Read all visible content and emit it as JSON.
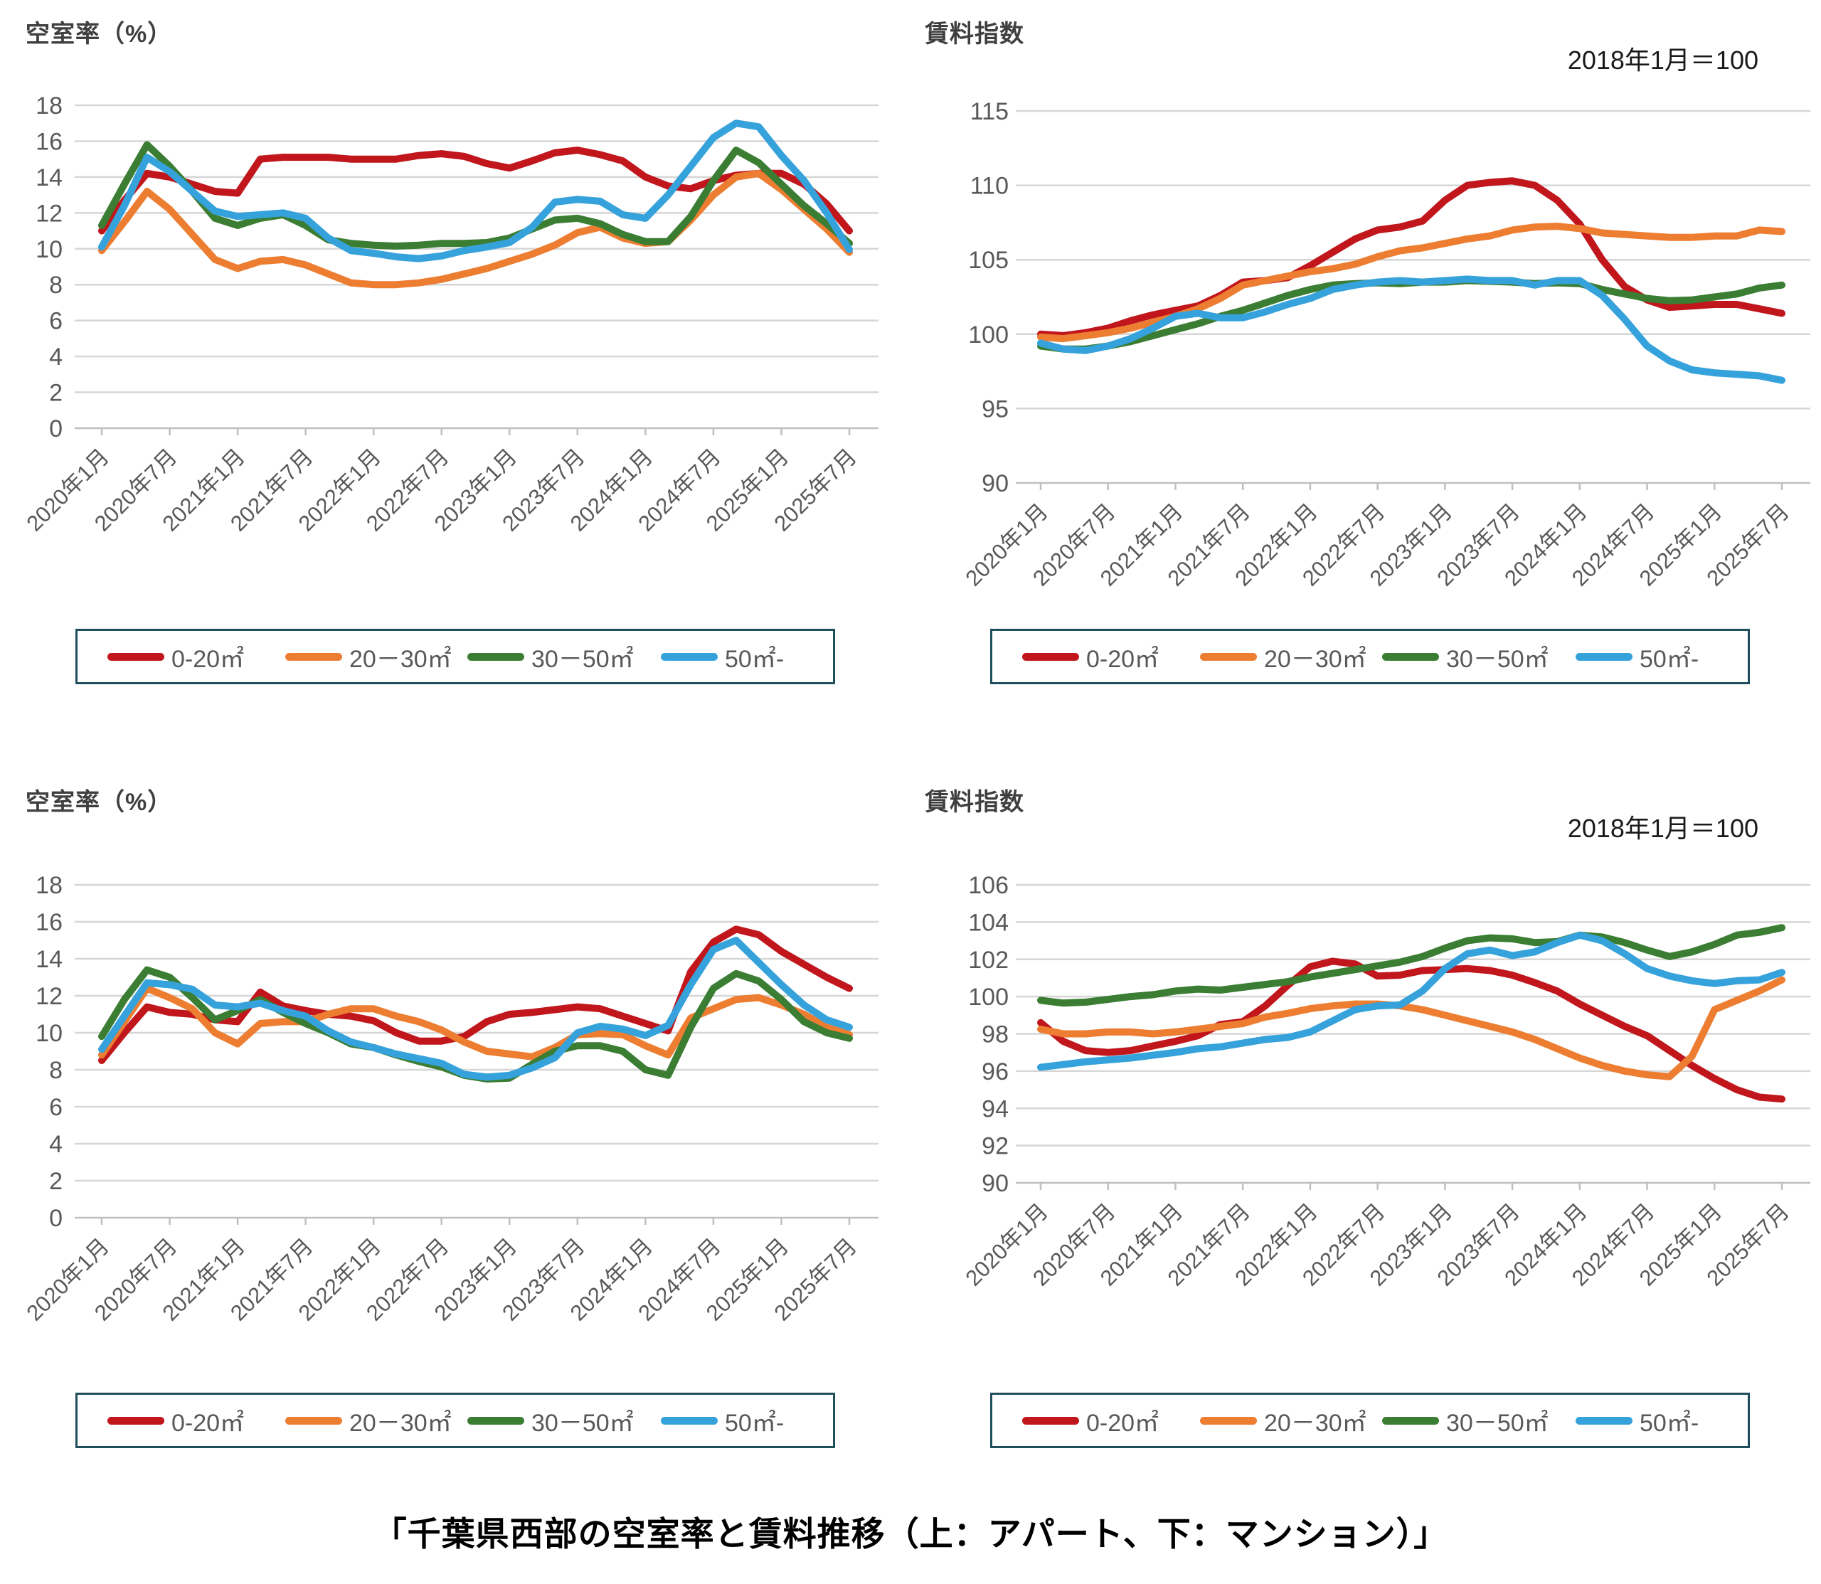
{
  "page": {
    "caption": "「千葉県西部の空室率と賃料推移（上：アパート、下：マンション）」",
    "background": "#ffffff"
  },
  "colors": {
    "series_0_20": "#c0161c",
    "series_20_30": "#ed7d31",
    "series_30_50": "#3a7d33",
    "series_50plus": "#36a2db",
    "grid": "#d6d6d6",
    "axis": "#bfbfbf",
    "tick_text": "#595959",
    "title_text": "#3f3f3f",
    "legend_border": "#1f4e5c"
  },
  "x_tick_labels": [
    "2020年1月",
    "2020年7月",
    "2021年1月",
    "2021年7月",
    "2022年1月",
    "2022年7月",
    "2023年1月",
    "2023年7月",
    "2024年1月",
    "2024年7月",
    "2025年1月",
    "2025年7月"
  ],
  "legend_labels": [
    "0-20㎡",
    "20－30㎡",
    "30－50㎡",
    "50㎡-"
  ],
  "chart_data": [
    {
      "id": "apartment-vacancy",
      "type": "line",
      "title": "空室率（%）",
      "xlabel": "",
      "ylabel": "空室率（%）",
      "ylim": [
        0,
        18
      ],
      "ytick_step": 2,
      "grid": true,
      "legend_position": "bottom",
      "x": [
        "2020-01",
        "2020-03",
        "2020-05",
        "2020-07",
        "2020-09",
        "2020-11",
        "2021-01",
        "2021-03",
        "2021-05",
        "2021-07",
        "2021-09",
        "2021-11",
        "2022-01",
        "2022-03",
        "2022-05",
        "2022-07",
        "2022-09",
        "2022-11",
        "2023-01",
        "2023-03",
        "2023-05",
        "2023-07",
        "2023-09",
        "2023-11",
        "2024-01",
        "2024-03",
        "2024-05",
        "2024-07",
        "2024-09",
        "2024-11",
        "2025-01",
        "2025-03",
        "2025-05",
        "2025-07"
      ],
      "series": [
        {
          "name": "0-20㎡",
          "color": "#c0161c",
          "values": [
            11.0,
            12.7,
            14.2,
            14.0,
            13.6,
            13.2,
            13.1,
            15.0,
            15.1,
            15.1,
            15.1,
            15.0,
            15.0,
            15.0,
            15.2,
            15.3,
            15.15,
            14.75,
            14.5,
            14.9,
            15.35,
            15.5,
            15.25,
            14.9,
            14.0,
            13.5,
            13.35,
            13.8,
            14.1,
            14.2,
            14.2,
            13.6,
            12.5,
            11.0
          ]
        },
        {
          "name": "20－30㎡",
          "color": "#ed7d31",
          "values": [
            9.9,
            11.5,
            13.2,
            12.2,
            10.8,
            9.4,
            8.9,
            9.3,
            9.4,
            9.1,
            8.6,
            8.1,
            8.0,
            8.0,
            8.1,
            8.3,
            8.6,
            8.9,
            9.3,
            9.7,
            10.2,
            10.9,
            11.2,
            10.6,
            10.3,
            10.4,
            11.6,
            13.0,
            14.0,
            14.2,
            13.3,
            12.2,
            11.1,
            9.8
          ]
        },
        {
          "name": "30－50㎡",
          "color": "#3a7d33",
          "values": [
            11.3,
            13.6,
            15.8,
            14.6,
            13.2,
            11.7,
            11.3,
            11.7,
            11.9,
            11.3,
            10.5,
            10.3,
            10.2,
            10.15,
            10.2,
            10.3,
            10.3,
            10.35,
            10.6,
            11.1,
            11.6,
            11.7,
            11.4,
            10.8,
            10.4,
            10.4,
            11.8,
            13.8,
            15.5,
            14.8,
            13.6,
            12.4,
            11.4,
            10.3
          ]
        },
        {
          "name": "50㎡-",
          "color": "#36a2db",
          "values": [
            10.1,
            12.4,
            15.1,
            14.3,
            13.2,
            12.1,
            11.8,
            11.9,
            12.0,
            11.7,
            10.6,
            9.9,
            9.75,
            9.55,
            9.45,
            9.6,
            9.9,
            10.1,
            10.35,
            11.2,
            12.6,
            12.75,
            12.65,
            11.9,
            11.7,
            13.0,
            14.6,
            16.2,
            17.0,
            16.8,
            15.2,
            13.8,
            12.0,
            9.95
          ]
        }
      ]
    },
    {
      "id": "apartment-rent",
      "type": "line",
      "title": "賃料指数",
      "annotation": "2018年1月＝100",
      "xlabel": "",
      "ylabel": "賃料指数",
      "ylim": [
        90,
        115
      ],
      "ytick_step": 5,
      "grid": true,
      "legend_position": "bottom",
      "x": [
        "2020-01",
        "2020-03",
        "2020-05",
        "2020-07",
        "2020-09",
        "2020-11",
        "2021-01",
        "2021-03",
        "2021-05",
        "2021-07",
        "2021-09",
        "2021-11",
        "2022-01",
        "2022-03",
        "2022-05",
        "2022-07",
        "2022-09",
        "2022-11",
        "2023-01",
        "2023-03",
        "2023-05",
        "2023-07",
        "2023-09",
        "2023-11",
        "2024-01",
        "2024-03",
        "2024-05",
        "2024-07",
        "2024-09",
        "2024-11",
        "2025-01",
        "2025-03",
        "2025-05",
        "2025-07"
      ],
      "series": [
        {
          "name": "0-20㎡",
          "color": "#c0161c",
          "values": [
            100.0,
            99.9,
            100.1,
            100.4,
            100.9,
            101.3,
            101.6,
            101.9,
            102.6,
            103.5,
            103.6,
            103.8,
            104.6,
            105.5,
            106.4,
            107.0,
            107.2,
            107.6,
            109.0,
            110.0,
            110.2,
            110.3,
            110.0,
            109.0,
            107.4,
            105.0,
            103.2,
            102.3,
            101.8,
            101.9,
            102.0,
            102.0,
            101.7,
            101.4
          ]
        },
        {
          "name": "20－30㎡",
          "color": "#ed7d31",
          "values": [
            99.8,
            99.7,
            99.9,
            100.1,
            100.4,
            100.8,
            101.2,
            101.7,
            102.4,
            103.3,
            103.6,
            103.9,
            104.2,
            104.4,
            104.7,
            105.2,
            105.6,
            105.8,
            106.1,
            106.4,
            106.6,
            107.0,
            107.2,
            107.25,
            107.1,
            106.8,
            106.7,
            106.6,
            106.5,
            106.5,
            106.6,
            106.6,
            107.0,
            106.9
          ]
        },
        {
          "name": "30－50㎡",
          "color": "#3a7d33",
          "values": [
            99.2,
            99.0,
            99.0,
            99.2,
            99.5,
            99.9,
            100.3,
            100.7,
            101.2,
            101.6,
            102.1,
            102.6,
            103.0,
            103.3,
            103.4,
            103.45,
            103.4,
            103.5,
            103.5,
            103.6,
            103.55,
            103.5,
            103.4,
            103.45,
            103.4,
            103.0,
            102.7,
            102.4,
            102.25,
            102.3,
            102.5,
            102.7,
            103.1,
            103.3
          ]
        },
        {
          "name": "50㎡-",
          "color": "#36a2db",
          "values": [
            99.4,
            99.0,
            98.9,
            99.2,
            99.7,
            100.4,
            101.2,
            101.4,
            101.1,
            101.1,
            101.5,
            102.0,
            102.4,
            103.0,
            103.3,
            103.5,
            103.6,
            103.5,
            103.6,
            103.7,
            103.6,
            103.6,
            103.3,
            103.6,
            103.6,
            102.6,
            101.0,
            99.2,
            98.2,
            97.6,
            97.4,
            97.3,
            97.2,
            96.9
          ]
        }
      ]
    },
    {
      "id": "mansion-vacancy",
      "type": "line",
      "title": "空室率（%）",
      "xlabel": "",
      "ylabel": "空室率（%）",
      "ylim": [
        0,
        18
      ],
      "ytick_step": 2,
      "grid": true,
      "legend_position": "bottom",
      "x": [
        "2020-01",
        "2020-03",
        "2020-05",
        "2020-07",
        "2020-09",
        "2020-11",
        "2021-01",
        "2021-03",
        "2021-05",
        "2021-07",
        "2021-09",
        "2021-11",
        "2022-01",
        "2022-03",
        "2022-05",
        "2022-07",
        "2022-09",
        "2022-11",
        "2023-01",
        "2023-03",
        "2023-05",
        "2023-07",
        "2023-09",
        "2023-11",
        "2024-01",
        "2024-03",
        "2024-05",
        "2024-07",
        "2024-09",
        "2024-11",
        "2025-01",
        "2025-03",
        "2025-05",
        "2025-07"
      ],
      "series": [
        {
          "name": "0-20㎡",
          "color": "#c0161c",
          "values": [
            8.5,
            10.0,
            11.4,
            11.1,
            11.0,
            10.7,
            10.6,
            12.2,
            11.45,
            11.2,
            11.0,
            10.9,
            10.65,
            10.0,
            9.55,
            9.55,
            9.8,
            10.6,
            11.0,
            11.1,
            11.25,
            11.4,
            11.3,
            10.9,
            10.5,
            10.1,
            13.3,
            14.9,
            15.6,
            15.3,
            14.4,
            13.7,
            13.0,
            12.4
          ]
        },
        {
          "name": "20－30㎡",
          "color": "#ed7d31",
          "values": [
            8.8,
            10.6,
            12.4,
            11.9,
            11.3,
            10.0,
            9.4,
            10.5,
            10.6,
            10.6,
            11.0,
            11.3,
            11.3,
            10.9,
            10.6,
            10.15,
            9.5,
            9.0,
            8.85,
            8.7,
            9.2,
            9.9,
            9.95,
            9.9,
            9.3,
            8.8,
            10.8,
            11.3,
            11.8,
            11.9,
            11.5,
            11.0,
            10.3,
            9.9
          ]
        },
        {
          "name": "30－50㎡",
          "color": "#3a7d33",
          "values": [
            9.8,
            11.8,
            13.4,
            13.0,
            11.9,
            10.7,
            11.2,
            11.8,
            11.1,
            10.5,
            10.0,
            9.4,
            9.2,
            8.8,
            8.45,
            8.15,
            7.7,
            7.5,
            7.55,
            8.3,
            9.0,
            9.3,
            9.3,
            9.0,
            8.0,
            7.7,
            10.3,
            12.4,
            13.2,
            12.8,
            11.8,
            10.6,
            10.0,
            9.7
          ]
        },
        {
          "name": "50㎡-",
          "color": "#36a2db",
          "values": [
            9.1,
            10.9,
            12.7,
            12.6,
            12.35,
            11.5,
            11.4,
            11.6,
            11.2,
            10.9,
            10.1,
            9.5,
            9.2,
            8.85,
            8.6,
            8.35,
            7.75,
            7.6,
            7.7,
            8.1,
            8.65,
            10.0,
            10.35,
            10.2,
            9.85,
            10.4,
            12.6,
            14.5,
            15.0,
            13.8,
            12.6,
            11.5,
            10.7,
            10.3
          ]
        }
      ]
    },
    {
      "id": "mansion-rent",
      "type": "line",
      "title": "賃料指数",
      "annotation": "2018年1月＝100",
      "xlabel": "",
      "ylabel": "賃料指数",
      "ylim": [
        90,
        106
      ],
      "ytick_step": 2,
      "grid": true,
      "legend_position": "bottom",
      "x": [
        "2020-01",
        "2020-03",
        "2020-05",
        "2020-07",
        "2020-09",
        "2020-11",
        "2021-01",
        "2021-03",
        "2021-05",
        "2021-07",
        "2021-09",
        "2021-11",
        "2022-01",
        "2022-03",
        "2022-05",
        "2022-07",
        "2022-09",
        "2022-11",
        "2023-01",
        "2023-03",
        "2023-05",
        "2023-07",
        "2023-09",
        "2023-11",
        "2024-01",
        "2024-03",
        "2024-05",
        "2024-07",
        "2024-09",
        "2024-11",
        "2025-01",
        "2025-03",
        "2025-05",
        "2025-07"
      ],
      "series": [
        {
          "name": "0-20㎡",
          "color": "#c0161c",
          "values": [
            98.6,
            97.6,
            97.1,
            97.0,
            97.1,
            97.35,
            97.6,
            97.9,
            98.5,
            98.65,
            99.5,
            100.6,
            101.6,
            101.9,
            101.75,
            101.1,
            101.15,
            101.4,
            101.45,
            101.5,
            101.4,
            101.15,
            100.75,
            100.3,
            99.6,
            99.0,
            98.4,
            97.9,
            97.1,
            96.3,
            95.6,
            95.0,
            94.6,
            94.5
          ]
        },
        {
          "name": "20－30㎡",
          "color": "#ed7d31",
          "values": [
            98.25,
            98.0,
            98.0,
            98.1,
            98.1,
            98.0,
            98.1,
            98.25,
            98.4,
            98.55,
            98.9,
            99.1,
            99.35,
            99.5,
            99.6,
            99.6,
            99.5,
            99.3,
            99.0,
            98.7,
            98.4,
            98.1,
            97.7,
            97.2,
            96.7,
            96.3,
            96.0,
            95.8,
            95.7,
            96.8,
            99.3,
            99.8,
            100.3,
            100.9
          ]
        },
        {
          "name": "30－50㎡",
          "color": "#3a7d33",
          "values": [
            99.8,
            99.65,
            99.7,
            99.85,
            100.0,
            100.1,
            100.3,
            100.4,
            100.35,
            100.5,
            100.65,
            100.8,
            101.05,
            101.25,
            101.45,
            101.65,
            101.85,
            102.15,
            102.6,
            103.0,
            103.15,
            103.1,
            102.9,
            102.95,
            103.3,
            103.2,
            102.9,
            102.5,
            102.15,
            102.4,
            102.8,
            103.3,
            103.45,
            103.7
          ]
        },
        {
          "name": "50㎡-",
          "color": "#36a2db",
          "values": [
            96.2,
            96.35,
            96.5,
            96.6,
            96.7,
            96.85,
            97.0,
            97.2,
            97.3,
            97.5,
            97.7,
            97.8,
            98.1,
            98.7,
            99.3,
            99.5,
            99.55,
            100.3,
            101.5,
            102.3,
            102.5,
            102.2,
            102.4,
            102.9,
            103.3,
            103.0,
            102.3,
            101.5,
            101.1,
            100.85,
            100.7,
            100.85,
            100.9,
            101.3
          ]
        }
      ]
    }
  ]
}
